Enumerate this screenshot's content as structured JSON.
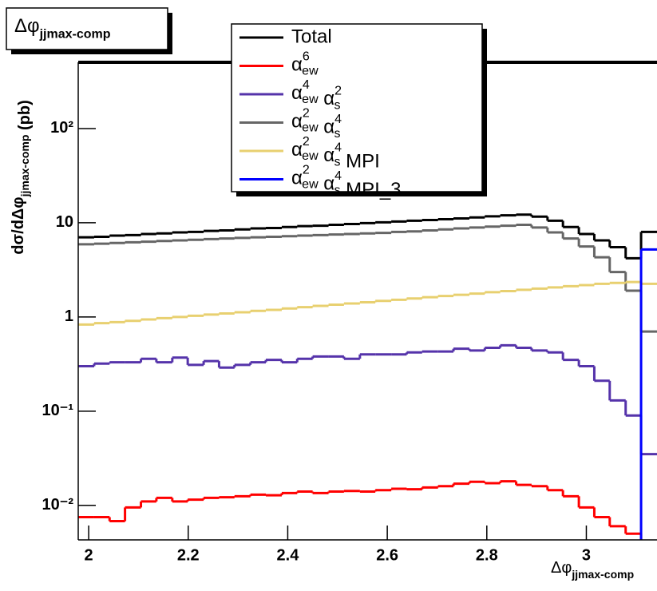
{
  "chart_data": {
    "type": "histogram",
    "title": "Δφjjmax-comp",
    "x_label": "Δφjjmax-comp",
    "y_label": "dσ/dΔφjjmax-comp (pb)",
    "log_y": true,
    "legend": "top-center",
    "bins": [
      1.979,
      2.011,
      2.042,
      2.073,
      2.105,
      2.136,
      2.168,
      2.199,
      2.231,
      2.262,
      2.293,
      2.325,
      2.356,
      2.388,
      2.419,
      2.45,
      2.482,
      2.513,
      2.545,
      2.576,
      2.608,
      2.639,
      2.67,
      2.702,
      2.733,
      2.765,
      2.796,
      2.827,
      2.859,
      2.89,
      2.922,
      2.953,
      2.985,
      3.016,
      3.047,
      3.079,
      3.11,
      3.142
    ],
    "xlim": [
      1.979,
      3.142
    ],
    "xticks": [
      2,
      2.2,
      2.4,
      2.6,
      2.8,
      3
    ],
    "ylim": [
      0.0043,
      505
    ],
    "yticks": [
      {
        "value": 0.01,
        "label": "10⁻²"
      },
      {
        "value": 0.1,
        "label": "10⁻¹"
      },
      1,
      10,
      {
        "value": 100,
        "label": "10²"
      }
    ],
    "series": [
      {
        "name": "Total",
        "color": "#000000",
        "values": [
          7.0,
          7.1,
          7.3,
          7.4,
          7.6,
          7.7,
          7.9,
          8.0,
          8.2,
          8.3,
          8.5,
          8.7,
          8.8,
          9.0,
          9.2,
          9.3,
          9.5,
          9.7,
          9.9,
          10.1,
          10.3,
          10.5,
          10.7,
          10.9,
          11.1,
          11.4,
          11.7,
          12.0,
          12.2,
          11.6,
          10.5,
          9.0,
          7.6,
          6.5,
          5.5,
          4.2,
          8.0
        ]
      },
      {
        "name": "αew6",
        "color": "#ff0000",
        "values": [
          0.0075,
          0.0075,
          0.0068,
          0.0095,
          0.011,
          0.012,
          0.011,
          0.0115,
          0.012,
          0.0122,
          0.0125,
          0.013,
          0.0128,
          0.0135,
          0.014,
          0.0135,
          0.014,
          0.0142,
          0.014,
          0.0145,
          0.015,
          0.0148,
          0.0155,
          0.016,
          0.017,
          0.0178,
          0.0172,
          0.018,
          0.0165,
          0.016,
          0.0145,
          0.0125,
          0.0095,
          0.0075,
          0.006,
          0.005,
          0.004
        ]
      },
      {
        "name": "αew4 αs2",
        "color": "#5533aa",
        "values": [
          0.3,
          0.32,
          0.33,
          0.33,
          0.36,
          0.33,
          0.37,
          0.31,
          0.34,
          0.29,
          0.31,
          0.33,
          0.35,
          0.33,
          0.36,
          0.38,
          0.38,
          0.36,
          0.4,
          0.4,
          0.4,
          0.42,
          0.43,
          0.43,
          0.46,
          0.44,
          0.47,
          0.5,
          0.47,
          0.44,
          0.42,
          0.35,
          0.3,
          0.21,
          0.13,
          0.09,
          0.035
        ]
      },
      {
        "name": "αew2 αs4",
        "color": "#666666",
        "values": [
          5.9,
          6.0,
          6.1,
          6.2,
          6.3,
          6.4,
          6.5,
          6.6,
          6.7,
          6.8,
          6.9,
          7.0,
          7.1,
          7.2,
          7.3,
          7.4,
          7.5,
          7.6,
          7.7,
          7.8,
          8.0,
          8.1,
          8.3,
          8.5,
          8.7,
          8.9,
          9.1,
          9.3,
          9.5,
          8.9,
          7.9,
          6.8,
          5.6,
          4.3,
          3.0,
          1.9,
          0.7
        ]
      },
      {
        "name": "αew2 αs4 MPI",
        "color": "#e8d070",
        "values": [
          0.83,
          0.86,
          0.88,
          0.91,
          0.94,
          0.97,
          1.0,
          1.03,
          1.06,
          1.09,
          1.12,
          1.16,
          1.19,
          1.23,
          1.27,
          1.31,
          1.35,
          1.39,
          1.43,
          1.48,
          1.52,
          1.57,
          1.62,
          1.67,
          1.72,
          1.77,
          1.83,
          1.88,
          1.94,
          2.0,
          2.06,
          2.12,
          2.18,
          2.25,
          2.3,
          2.35,
          2.25
        ]
      },
      {
        "name": "αew2 αs4 MPI_3",
        "color": "#0000ff",
        "values": [
          0,
          0,
          0,
          0,
          0,
          0,
          0,
          0,
          0,
          0,
          0,
          0,
          0,
          0,
          0,
          0,
          0,
          0,
          0,
          0,
          0,
          0,
          0,
          0,
          0,
          0,
          0,
          0,
          0,
          0,
          0,
          0,
          0,
          0,
          0,
          0,
          5.2
        ]
      }
    ]
  }
}
